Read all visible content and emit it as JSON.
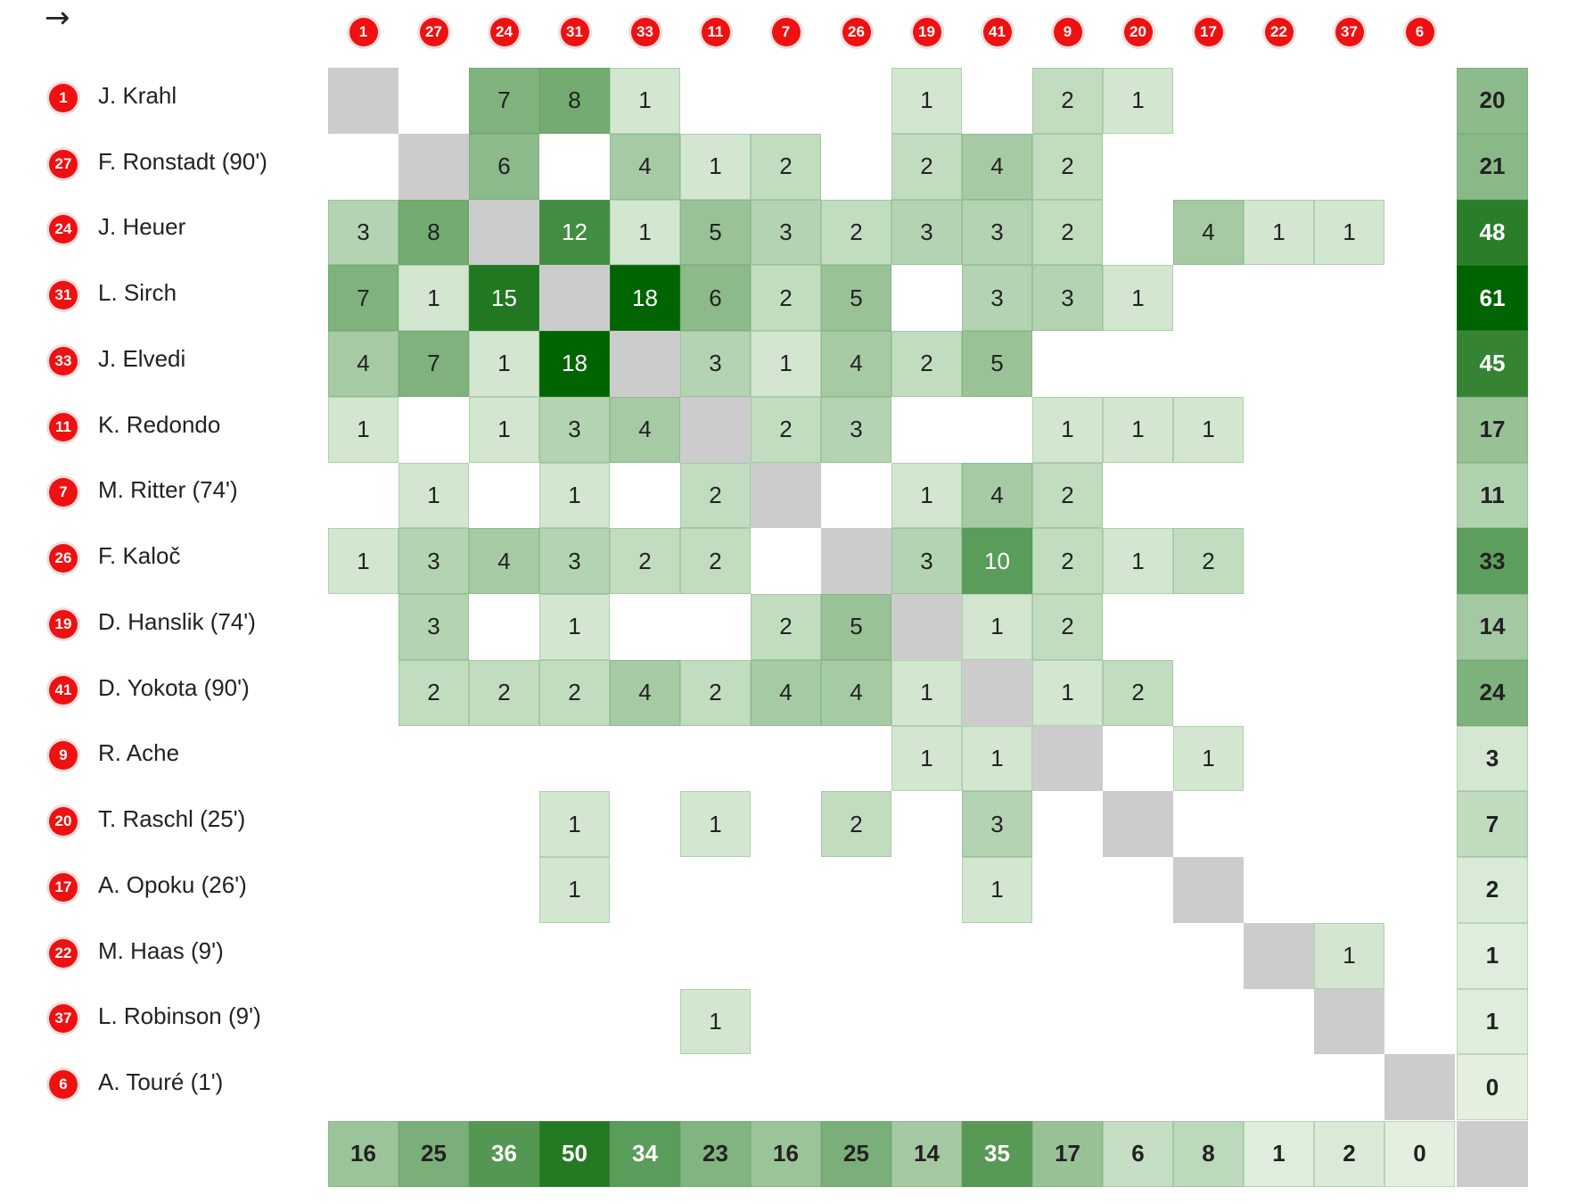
{
  "arrow_glyph": "→",
  "colors": {
    "badge": "#ee1111",
    "diagonal": "#cccccc",
    "cell_scale_low": "#e6f2e3",
    "cell_scale_high": "#006400"
  },
  "chart_data": {
    "type": "heatmap",
    "rows": [
      {
        "num": "1",
        "name": "J. Krahl"
      },
      {
        "num": "27",
        "name": "F. Ronstadt (90')"
      },
      {
        "num": "24",
        "name": "J. Heuer"
      },
      {
        "num": "31",
        "name": "L. Sirch"
      },
      {
        "num": "33",
        "name": "J. Elvedi"
      },
      {
        "num": "11",
        "name": "K. Redondo"
      },
      {
        "num": "7",
        "name": "M. Ritter (74')"
      },
      {
        "num": "26",
        "name": "F. Kaloč"
      },
      {
        "num": "19",
        "name": "D. Hanslik (74')"
      },
      {
        "num": "41",
        "name": "D. Yokota (90')"
      },
      {
        "num": "9",
        "name": "R. Ache"
      },
      {
        "num": "20",
        "name": "T. Raschl (25')"
      },
      {
        "num": "17",
        "name": "A. Opoku (26')"
      },
      {
        "num": "22",
        "name": "M. Haas (9')"
      },
      {
        "num": "37",
        "name": "L. Robinson (9')"
      },
      {
        "num": "6",
        "name": "A. Touré (1')"
      }
    ],
    "columns": [
      "1",
      "27",
      "24",
      "31",
      "33",
      "11",
      "7",
      "26",
      "19",
      "41",
      "9",
      "20",
      "17",
      "22",
      "37",
      "6"
    ],
    "matrix": [
      [
        null,
        0,
        7,
        8,
        1,
        0,
        0,
        0,
        1,
        0,
        2,
        1,
        0,
        0,
        0,
        0
      ],
      [
        0,
        null,
        6,
        0,
        4,
        1,
        2,
        0,
        2,
        4,
        2,
        0,
        0,
        0,
        0,
        0
      ],
      [
        3,
        8,
        null,
        12,
        1,
        5,
        3,
        2,
        3,
        3,
        2,
        0,
        4,
        1,
        1,
        0
      ],
      [
        7,
        1,
        15,
        null,
        18,
        6,
        2,
        5,
        0,
        3,
        3,
        1,
        0,
        0,
        0,
        0
      ],
      [
        4,
        7,
        1,
        18,
        null,
        3,
        1,
        4,
        2,
        5,
        0,
        0,
        0,
        0,
        0,
        0
      ],
      [
        1,
        0,
        1,
        3,
        4,
        null,
        2,
        3,
        0,
        0,
        1,
        1,
        1,
        0,
        0,
        0
      ],
      [
        0,
        1,
        0,
        1,
        0,
        2,
        null,
        0,
        1,
        4,
        2,
        0,
        0,
        0,
        0,
        0
      ],
      [
        1,
        3,
        4,
        3,
        2,
        2,
        0,
        null,
        3,
        10,
        2,
        1,
        2,
        0,
        0,
        0
      ],
      [
        0,
        3,
        0,
        1,
        0,
        0,
        2,
        5,
        null,
        1,
        2,
        0,
        0,
        0,
        0,
        0
      ],
      [
        0,
        2,
        2,
        2,
        4,
        2,
        4,
        4,
        1,
        null,
        1,
        2,
        0,
        0,
        0,
        0
      ],
      [
        0,
        0,
        0,
        0,
        0,
        0,
        0,
        0,
        1,
        1,
        null,
        0,
        1,
        0,
        0,
        0
      ],
      [
        0,
        0,
        0,
        1,
        0,
        1,
        0,
        2,
        0,
        3,
        0,
        null,
        0,
        0,
        0,
        0
      ],
      [
        0,
        0,
        0,
        1,
        0,
        0,
        0,
        0,
        0,
        1,
        0,
        0,
        null,
        0,
        0,
        0
      ],
      [
        0,
        0,
        0,
        0,
        0,
        0,
        0,
        0,
        0,
        0,
        0,
        0,
        0,
        null,
        1,
        0
      ],
      [
        0,
        0,
        0,
        0,
        0,
        1,
        0,
        0,
        0,
        0,
        0,
        0,
        0,
        0,
        null,
        0
      ],
      [
        0,
        0,
        0,
        0,
        0,
        0,
        0,
        0,
        0,
        0,
        0,
        0,
        0,
        0,
        0,
        null
      ]
    ],
    "row_totals": [
      20,
      21,
      48,
      61,
      45,
      17,
      11,
      33,
      14,
      24,
      3,
      7,
      2,
      1,
      1,
      0
    ],
    "col_totals": [
      16,
      25,
      36,
      50,
      34,
      23,
      16,
      25,
      14,
      35,
      17,
      6,
      8,
      1,
      2,
      0
    ]
  }
}
